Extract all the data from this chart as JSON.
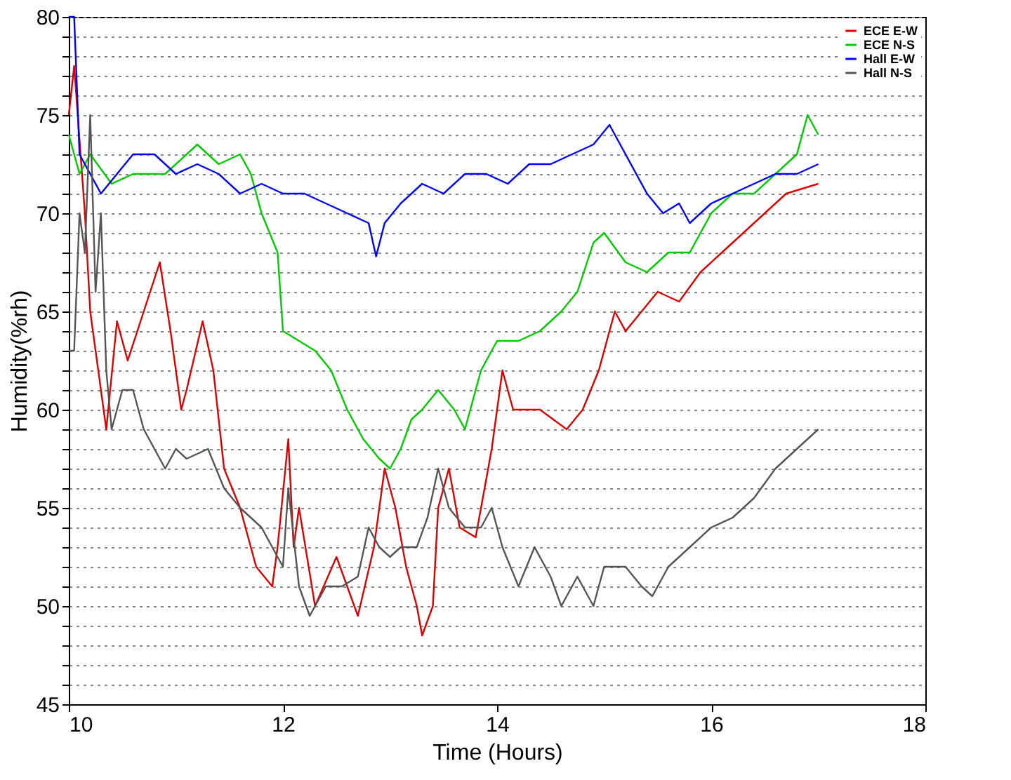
{
  "chart_data": {
    "type": "line",
    "xlabel": "Time (Hours)",
    "ylabel": "Humidity(%rh)",
    "xlim": [
      10,
      18
    ],
    "xticks": [
      10,
      12,
      14,
      16,
      18
    ],
    "ylim": [
      45,
      80
    ],
    "yticks": [
      45,
      {
        "value": 46,
        "label": null
      },
      {
        "value": 47,
        "label": null
      },
      {
        "value": 48,
        "label": null
      },
      {
        "value": 49,
        "label": null
      },
      50,
      {
        "value": 51,
        "label": null
      },
      {
        "value": 52,
        "label": null
      },
      {
        "value": 53,
        "label": null
      },
      {
        "value": 54,
        "label": null
      },
      55,
      {
        "value": 56,
        "label": null
      },
      {
        "value": 57,
        "label": null
      },
      {
        "value": 58,
        "label": null
      },
      {
        "value": 59,
        "label": null
      },
      60,
      {
        "value": 61,
        "label": null
      },
      {
        "value": 62,
        "label": null
      },
      {
        "value": 63,
        "label": null
      },
      {
        "value": 64,
        "label": null
      },
      65,
      {
        "value": 66,
        "label": null
      },
      {
        "value": 67,
        "label": null
      },
      {
        "value": 68,
        "label": null
      },
      {
        "value": 69,
        "label": null
      },
      70,
      {
        "value": 71,
        "label": null
      },
      {
        "value": 72,
        "label": null
      },
      {
        "value": 73,
        "label": null
      },
      {
        "value": 74,
        "label": null
      },
      75,
      {
        "value": 76,
        "label": null
      },
      {
        "value": 77,
        "label": null
      },
      {
        "value": 78,
        "label": null
      },
      {
        "value": 79,
        "label": null
      },
      80
    ],
    "grid": "y",
    "legend": "top right",
    "line_style": "solid",
    "series": [
      {
        "name": "ECE E-W",
        "color": "#dd0000",
        "x": [
          10.0,
          10.05,
          10.15,
          10.2,
          10.35,
          10.45,
          10.55,
          10.7,
          10.85,
          10.95,
          11.05,
          11.1,
          11.25,
          11.35,
          11.45,
          11.6,
          11.75,
          11.9,
          11.95,
          12.05,
          12.1,
          12.15,
          12.3,
          12.5,
          12.6,
          12.7,
          12.85,
          12.95,
          13.05,
          13.15,
          13.25,
          13.3,
          13.4,
          13.45,
          13.55,
          13.65,
          13.8,
          13.85,
          13.95,
          14.05,
          14.15,
          14.4,
          14.65,
          14.8,
          14.95,
          15.1,
          15.2,
          15.5,
          15.7,
          15.9,
          16.1,
          16.3,
          16.5,
          16.7,
          17.0
        ],
        "values": [
          75,
          77.5,
          70,
          65,
          59,
          64.5,
          62.5,
          65,
          67.5,
          64,
          60,
          61,
          64.5,
          62,
          57,
          55,
          52,
          51,
          53,
          58.5,
          53,
          55,
          50,
          52.5,
          51,
          49.5,
          53,
          57,
          55,
          52,
          50,
          48.5,
          50,
          55,
          57,
          54,
          53.5,
          55,
          58,
          62,
          60,
          60,
          59,
          60,
          62,
          65,
          64,
          66,
          65.5,
          67,
          68,
          69,
          70,
          71,
          71.5
        ]
      },
      {
        "name": "ECE N-S",
        "color": "#00cc00",
        "x": [
          10.0,
          10.1,
          10.2,
          10.4,
          10.6,
          10.9,
          11.2,
          11.4,
          11.6,
          11.7,
          11.8,
          11.95,
          12.0,
          12.15,
          12.3,
          12.45,
          12.6,
          12.75,
          12.9,
          13.0,
          13.1,
          13.2,
          13.3,
          13.45,
          13.6,
          13.7,
          13.85,
          14.0,
          14.2,
          14.4,
          14.6,
          14.75,
          14.9,
          15.0,
          15.2,
          15.4,
          15.6,
          15.8,
          16.0,
          16.2,
          16.4,
          16.6,
          16.8,
          16.9,
          17.0
        ],
        "values": [
          74,
          72,
          73,
          71.5,
          72,
          72,
          73.5,
          72.5,
          73,
          72,
          70,
          68,
          64,
          63.5,
          63,
          62,
          60,
          58.5,
          57.5,
          57,
          58,
          59.5,
          60,
          61,
          60,
          59,
          62,
          63.5,
          63.5,
          64,
          65,
          66,
          68.5,
          69,
          67.5,
          67,
          68,
          68,
          70,
          71,
          71,
          72,
          73,
          75,
          74
        ]
      },
      {
        "name": "Hall E-W",
        "color": "#0000ff",
        "x": [
          10.0,
          10.05,
          10.1,
          10.2,
          10.3,
          10.45,
          10.6,
          10.8,
          11.0,
          11.2,
          11.4,
          11.6,
          11.8,
          12.0,
          12.2,
          12.4,
          12.6,
          12.8,
          12.87,
          12.95,
          13.1,
          13.3,
          13.5,
          13.7,
          13.9,
          14.1,
          14.3,
          14.5,
          14.7,
          14.9,
          15.05,
          15.2,
          15.4,
          15.55,
          15.7,
          15.8,
          16.0,
          16.2,
          16.4,
          16.6,
          16.8,
          17.0
        ],
        "values": [
          80,
          80,
          73,
          72,
          71,
          72,
          73,
          73,
          72,
          72.5,
          72,
          71,
          71.5,
          71,
          71,
          70.5,
          70,
          69.5,
          67.8,
          69.5,
          70.5,
          71.5,
          71,
          72,
          72,
          71.5,
          72.5,
          72.5,
          73,
          73.5,
          74.5,
          73,
          71,
          70,
          70.5,
          69.5,
          70.5,
          71,
          71.5,
          72,
          72,
          72.5
        ]
      },
      {
        "name": "Hall N-S",
        "color": "#555555",
        "x": [
          10.0,
          10.05,
          10.1,
          10.15,
          10.2,
          10.25,
          10.3,
          10.35,
          10.4,
          10.5,
          10.6,
          10.7,
          10.9,
          11.0,
          11.1,
          11.3,
          11.45,
          11.6,
          11.8,
          11.9,
          12.0,
          12.05,
          12.15,
          12.25,
          12.4,
          12.55,
          12.7,
          12.8,
          12.9,
          13.0,
          13.1,
          13.25,
          13.35,
          13.45,
          13.55,
          13.7,
          13.85,
          13.95,
          14.05,
          14.2,
          14.35,
          14.5,
          14.6,
          14.75,
          14.9,
          15.0,
          15.2,
          15.35,
          15.45,
          15.6,
          15.8,
          16.0,
          16.2,
          16.4,
          16.6,
          16.8,
          17.0
        ],
        "values": [
          63,
          63,
          70,
          68,
          75,
          66,
          70,
          62,
          59,
          61,
          61,
          59,
          57,
          58,
          57.5,
          58,
          56,
          55,
          54,
          53,
          52,
          56,
          51,
          49.5,
          51,
          51,
          51.5,
          54,
          53,
          52.5,
          53,
          53,
          54.5,
          57,
          55,
          54,
          54,
          55,
          53,
          51,
          53,
          51.5,
          50,
          51.5,
          50,
          52,
          52,
          51,
          50.5,
          52,
          53,
          54,
          54.5,
          55.5,
          57,
          58,
          59
        ]
      }
    ]
  }
}
